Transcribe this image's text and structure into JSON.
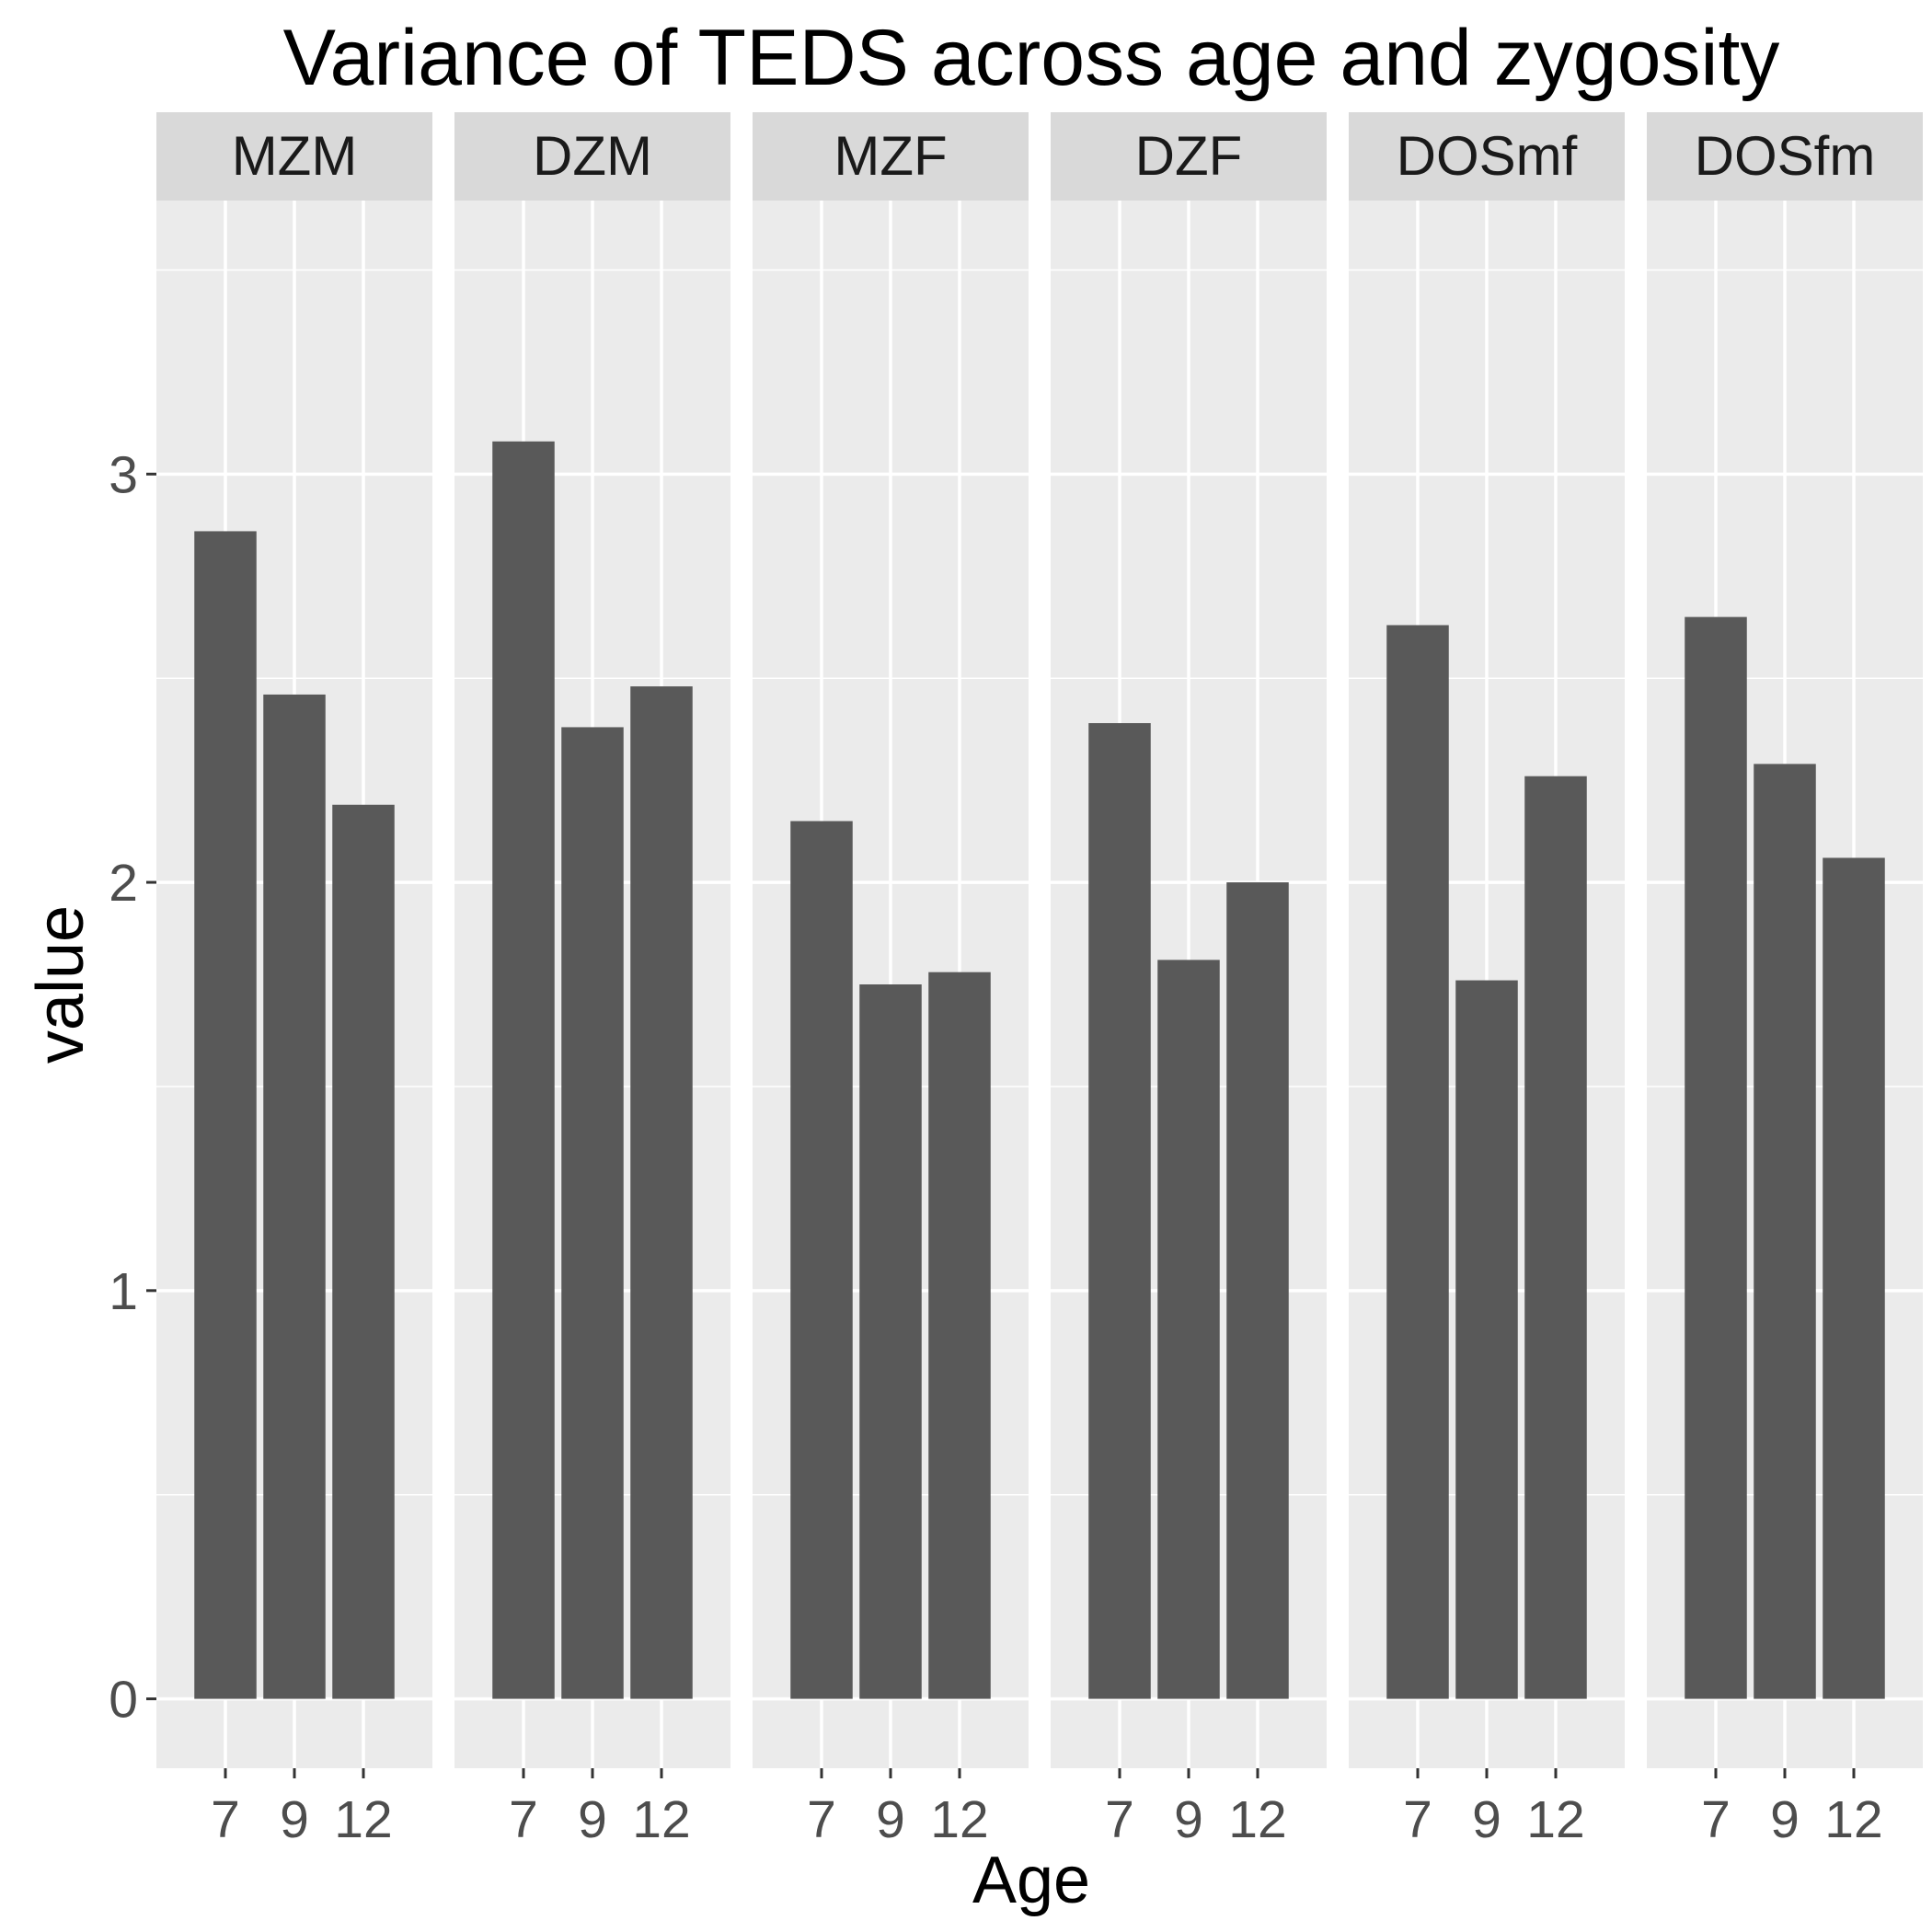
{
  "chart_data": {
    "type": "bar",
    "title": "Variance of TEDS across age and zygosity",
    "xlabel": "Age",
    "ylabel": "value",
    "ylim": [
      -0.17,
      3.67
    ],
    "yticks": [
      "0",
      "1",
      "2",
      "3"
    ],
    "categories": [
      "7",
      "9",
      "12"
    ],
    "grid": true,
    "facets": [
      {
        "name": "MZM",
        "values": [
          2.86,
          2.46,
          2.19
        ]
      },
      {
        "name": "DZM",
        "values": [
          3.08,
          2.38,
          2.48
        ]
      },
      {
        "name": "MZF",
        "values": [
          2.15,
          1.75,
          1.78
        ]
      },
      {
        "name": "DZF",
        "values": [
          2.39,
          1.81,
          2.0
        ]
      },
      {
        "name": "DOSmf",
        "values": [
          2.63,
          1.76,
          2.26
        ]
      },
      {
        "name": "DOSfm",
        "values": [
          2.65,
          2.29,
          2.06
        ]
      }
    ],
    "colors": {
      "bar": "#595959",
      "panel": "#ebebeb",
      "strip": "#d9d9d9",
      "grid": "#ffffff"
    }
  }
}
